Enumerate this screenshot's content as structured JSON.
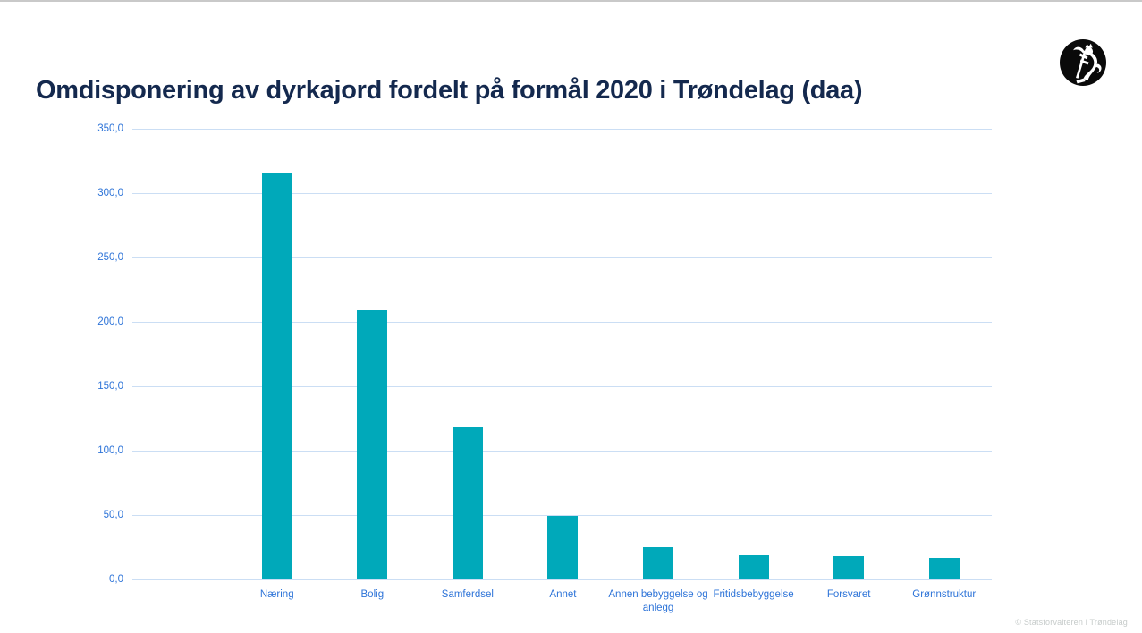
{
  "page": {
    "footer": "© Statsforvalteren i Trøndelag",
    "logo": "statsforvalteren-norwegian-lion-emblem"
  },
  "chart_data": {
    "type": "bar",
    "title": "Omdisponering av dyrkajord fordelt på formål 2020 i Trøndelag (daa)",
    "categories": [
      "Næring",
      "Bolig",
      "Samferdsel",
      "Annet",
      "Annen bebyggelse og anlegg",
      "Fritidsbebyggelse",
      "Forsvaret",
      "Grønnstruktur"
    ],
    "values": [
      315,
      209,
      118,
      49,
      25,
      19,
      18,
      17
    ],
    "xlabel": "",
    "ylabel": "",
    "ylim": [
      0,
      350
    ],
    "ytick_step": 50,
    "ytick_labels": [
      "0,0",
      "50,0",
      "100,0",
      "150,0",
      "200,0",
      "250,0",
      "300,0",
      "350,0"
    ],
    "grid": true,
    "legend": "none",
    "colors": {
      "bar": "#00a9ba",
      "title": "#14294e",
      "axis_labels": "#2e74d8",
      "gridlines": "#cbdef4"
    }
  }
}
